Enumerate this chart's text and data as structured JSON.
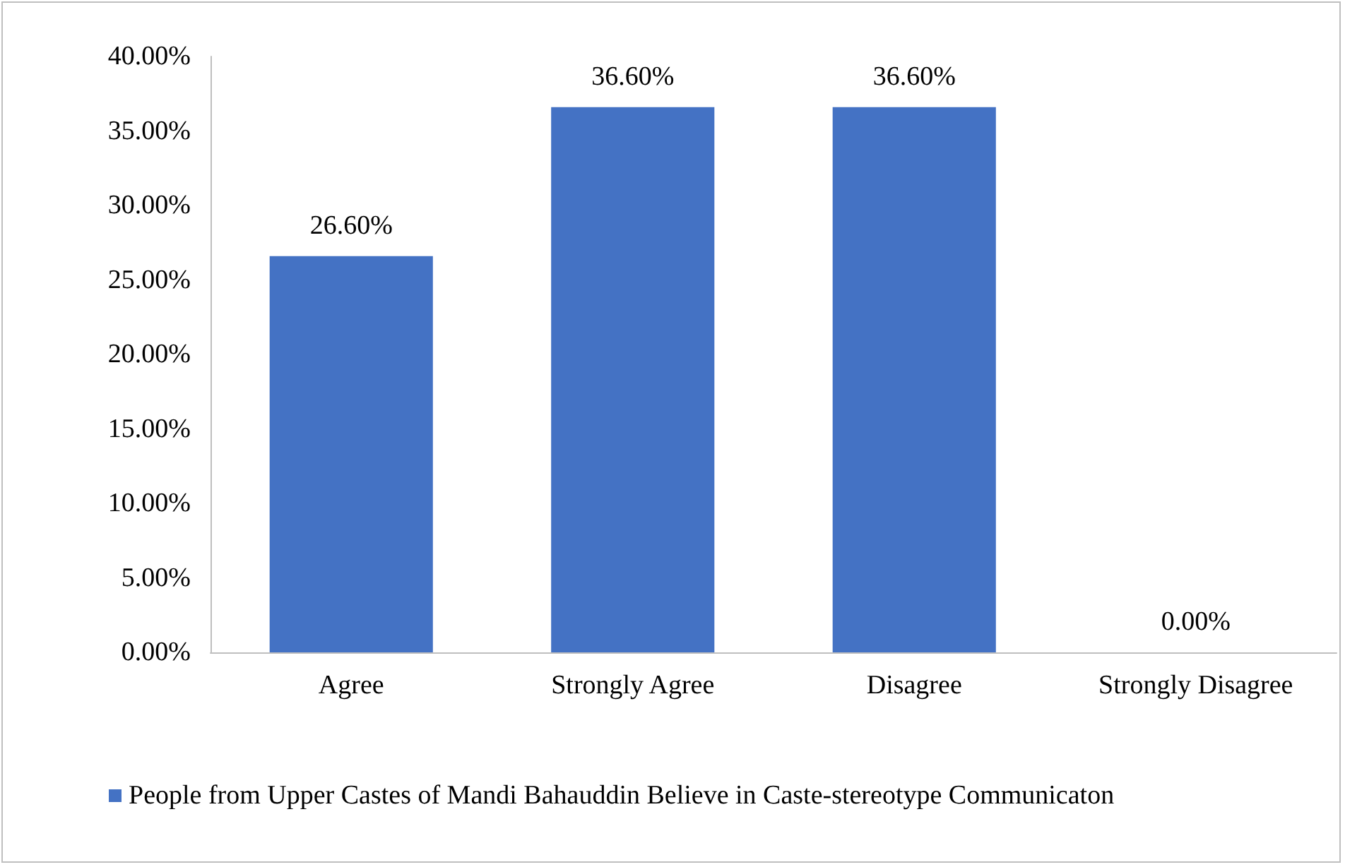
{
  "chart_data": {
    "type": "bar",
    "categories": [
      "Agree",
      "Strongly Agree",
      "Disagree",
      "Strongly Disagree"
    ],
    "series": [
      {
        "name": "People from Upper Castes of Mandi Bahauddin Believe in Caste-stereotype Communicaton",
        "color": "#4472c4",
        "values": [
          26.6,
          36.6,
          36.6,
          0
        ],
        "value_labels": [
          "26.60%",
          "36.60%",
          "36.60%",
          "0.00%"
        ]
      }
    ],
    "ylim": [
      0,
      40
    ],
    "yticks": [
      {
        "value": 0,
        "label": "0.00%"
      },
      {
        "value": 5,
        "label": "5.00%"
      },
      {
        "value": 10,
        "label": "10.00%"
      },
      {
        "value": 15,
        "label": "15.00%"
      },
      {
        "value": 20,
        "label": "20.00%"
      },
      {
        "value": 25,
        "label": "25.00%"
      },
      {
        "value": 30,
        "label": "30.00%"
      },
      {
        "value": 35,
        "label": "35.00%"
      },
      {
        "value": 40,
        "label": "40.00%"
      }
    ],
    "grid": false,
    "legend": "bottom left"
  }
}
